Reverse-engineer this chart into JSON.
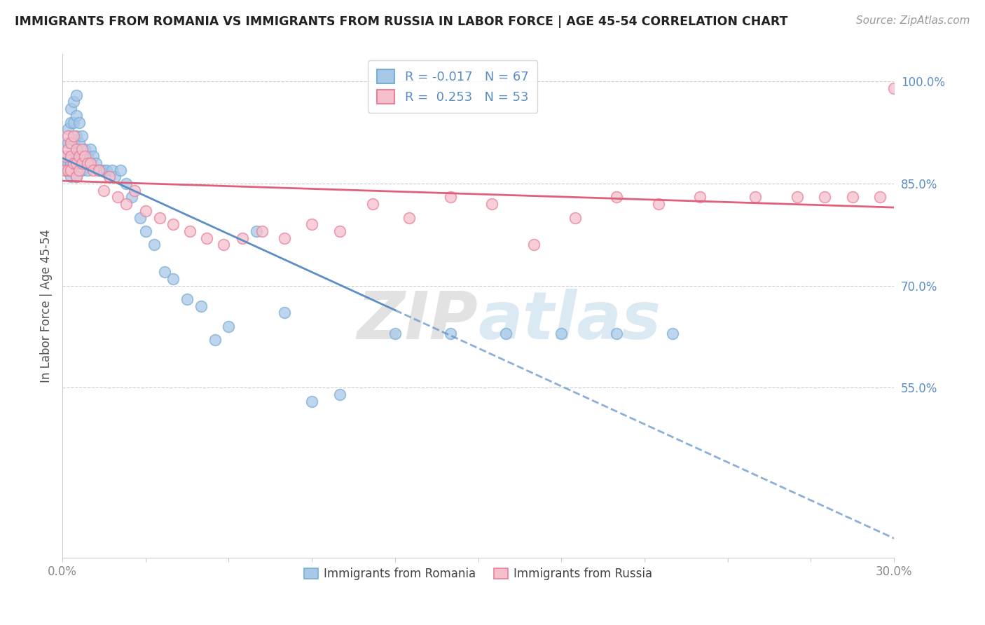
{
  "title": "IMMIGRANTS FROM ROMANIA VS IMMIGRANTS FROM RUSSIA IN LABOR FORCE | AGE 45-54 CORRELATION CHART",
  "source": "Source: ZipAtlas.com",
  "ylabel_label": "In Labor Force | Age 45-54",
  "ylabel_ticks": [
    55.0,
    70.0,
    85.0,
    100.0
  ],
  "xlim": [
    0.0,
    0.3
  ],
  "ylim": [
    0.3,
    1.04
  ],
  "R_romania": -0.017,
  "N_romania": 67,
  "R_russia": 0.253,
  "N_russia": 53,
  "color_romania_fill": "#A8C8E8",
  "color_romania_edge": "#7AAFD4",
  "color_russia_fill": "#F5C0CC",
  "color_russia_edge": "#E8809A",
  "color_romania_line": "#5B8EC5",
  "color_russia_line": "#E0607A",
  "romania_x": [
    0.001,
    0.001,
    0.002,
    0.002,
    0.002,
    0.002,
    0.002,
    0.003,
    0.003,
    0.003,
    0.003,
    0.003,
    0.003,
    0.003,
    0.004,
    0.004,
    0.004,
    0.004,
    0.004,
    0.005,
    0.005,
    0.005,
    0.005,
    0.005,
    0.005,
    0.006,
    0.006,
    0.006,
    0.007,
    0.007,
    0.007,
    0.008,
    0.008,
    0.009,
    0.009,
    0.01,
    0.01,
    0.011,
    0.012,
    0.013,
    0.014,
    0.015,
    0.016,
    0.018,
    0.019,
    0.021,
    0.023,
    0.025,
    0.028,
    0.03,
    0.033,
    0.037,
    0.04,
    0.045,
    0.05,
    0.055,
    0.06,
    0.07,
    0.08,
    0.09,
    0.1,
    0.12,
    0.14,
    0.16,
    0.18,
    0.2,
    0.22
  ],
  "romania_y": [
    0.88,
    0.87,
    0.93,
    0.91,
    0.89,
    0.88,
    0.87,
    0.96,
    0.94,
    0.91,
    0.89,
    0.88,
    0.87,
    0.86,
    0.97,
    0.94,
    0.91,
    0.89,
    0.88,
    0.98,
    0.95,
    0.92,
    0.9,
    0.88,
    0.86,
    0.94,
    0.91,
    0.88,
    0.92,
    0.89,
    0.87,
    0.9,
    0.88,
    0.89,
    0.87,
    0.9,
    0.88,
    0.89,
    0.88,
    0.87,
    0.87,
    0.87,
    0.87,
    0.87,
    0.86,
    0.87,
    0.85,
    0.83,
    0.8,
    0.78,
    0.76,
    0.72,
    0.71,
    0.68,
    0.67,
    0.62,
    0.64,
    0.78,
    0.66,
    0.53,
    0.54,
    0.63,
    0.63,
    0.63,
    0.63,
    0.63,
    0.63
  ],
  "russia_x": [
    0.001,
    0.001,
    0.002,
    0.002,
    0.002,
    0.003,
    0.003,
    0.003,
    0.004,
    0.004,
    0.005,
    0.005,
    0.005,
    0.006,
    0.006,
    0.007,
    0.007,
    0.008,
    0.009,
    0.01,
    0.011,
    0.013,
    0.015,
    0.017,
    0.02,
    0.023,
    0.026,
    0.03,
    0.035,
    0.04,
    0.046,
    0.052,
    0.058,
    0.065,
    0.072,
    0.08,
    0.09,
    0.1,
    0.112,
    0.125,
    0.14,
    0.155,
    0.17,
    0.185,
    0.2,
    0.215,
    0.23,
    0.25,
    0.265,
    0.275,
    0.285,
    0.295,
    0.3
  ],
  "russia_y": [
    0.89,
    0.87,
    0.92,
    0.9,
    0.87,
    0.91,
    0.89,
    0.87,
    0.92,
    0.88,
    0.9,
    0.88,
    0.86,
    0.89,
    0.87,
    0.9,
    0.88,
    0.89,
    0.88,
    0.88,
    0.87,
    0.87,
    0.84,
    0.86,
    0.83,
    0.82,
    0.84,
    0.81,
    0.8,
    0.79,
    0.78,
    0.77,
    0.76,
    0.77,
    0.78,
    0.77,
    0.79,
    0.78,
    0.82,
    0.8,
    0.83,
    0.82,
    0.76,
    0.8,
    0.83,
    0.82,
    0.83,
    0.83,
    0.83,
    0.83,
    0.83,
    0.83,
    0.99
  ],
  "watermark_zip": "ZIP",
  "watermark_atlas": "atlas",
  "grid_color": "#cccccc",
  "background_color": "#ffffff",
  "tick_color_x": "#888888",
  "tick_color_y": "#5B8EC5"
}
